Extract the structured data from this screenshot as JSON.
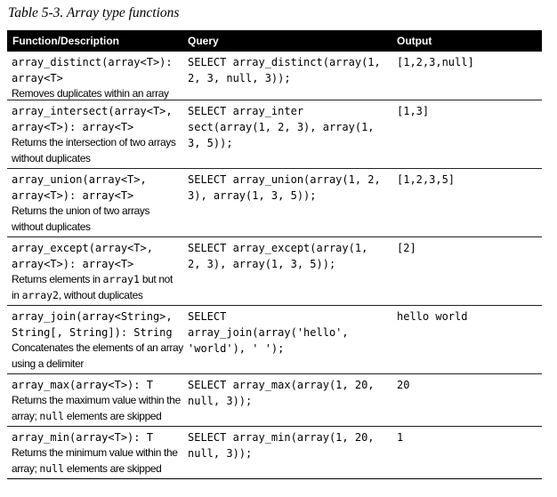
{
  "caption": "Table 5-3. Array type functions",
  "headers": {
    "function": "Function/Description",
    "query": "Query",
    "output": "Output"
  },
  "rows": [
    {
      "sig": [
        "array_distinct(array<T>):",
        "array<T>"
      ],
      "desc": [
        [
          {
            "t": "Removes duplicates within an array"
          }
        ]
      ],
      "query": [
        "SELECT array_distinct(array(1,",
        "2, 3, null, 3));"
      ],
      "output": "[1,2,3,null]"
    },
    {
      "sig": [
        "array_intersect(array<T>,",
        "array<T>): array<T>"
      ],
      "desc": [
        [
          {
            "t": "Returns the intersection of two arrays"
          }
        ],
        [
          {
            "t": "without duplicates"
          }
        ]
      ],
      "query": [
        "SELECT array_inter",
        "sect(array(1, 2, 3), array(1,",
        "3, 5));"
      ],
      "output": "[1,3]"
    },
    {
      "sig": [
        "array_union(array<T>,",
        "array<T>): array<T>"
      ],
      "desc": [
        [
          {
            "t": "Returns the union of two arrays"
          }
        ],
        [
          {
            "t": "without duplicates"
          }
        ]
      ],
      "query": [
        "SELECT array_union(array(1, 2,",
        "3), array(1, 3, 5));"
      ],
      "output": "[1,2,3,5]"
    },
    {
      "sig": [
        "array_except(array<T>,",
        "array<T>): array<T>"
      ],
      "desc": [
        [
          {
            "t": "Returns elements in "
          },
          {
            "t": "array1",
            "m": true
          },
          {
            "t": " but not"
          }
        ],
        [
          {
            "t": "in "
          },
          {
            "t": "array2",
            "m": true
          },
          {
            "t": ", without duplicates"
          }
        ]
      ],
      "query": [
        "SELECT array_except(array(1,",
        "2, 3), array(1, 3, 5));"
      ],
      "output": "[2]"
    },
    {
      "sig": [
        "array_join(array<String>,",
        "String[, String]): String"
      ],
      "desc": [
        [
          {
            "t": "Concatenates the elements of an array"
          }
        ],
        [
          {
            "t": "using a delimiter"
          }
        ]
      ],
      "query": [
        "SELECT",
        "array_join(array('hello',",
        "'world'), ' ');"
      ],
      "output": "hello world"
    },
    {
      "sig": [
        "array_max(array<T>): T"
      ],
      "desc": [
        [
          {
            "t": "Returns the maximum value within the"
          }
        ],
        [
          {
            "t": "array; "
          },
          {
            "t": "null",
            "m": true
          },
          {
            "t": " elements are skipped"
          }
        ]
      ],
      "query": [
        "SELECT array_max(array(1, 20,",
        "null, 3));"
      ],
      "output": "20"
    },
    {
      "sig": [
        "array_min(array<T>): T"
      ],
      "desc": [
        [
          {
            "t": "Returns the minimum value within the"
          }
        ],
        [
          {
            "t": "array; "
          },
          {
            "t": "null",
            "m": true
          },
          {
            "t": " elements are skipped"
          }
        ]
      ],
      "query": [
        "SELECT array_min(array(1, 20,",
        "null, 3));"
      ],
      "output": "1"
    }
  ]
}
